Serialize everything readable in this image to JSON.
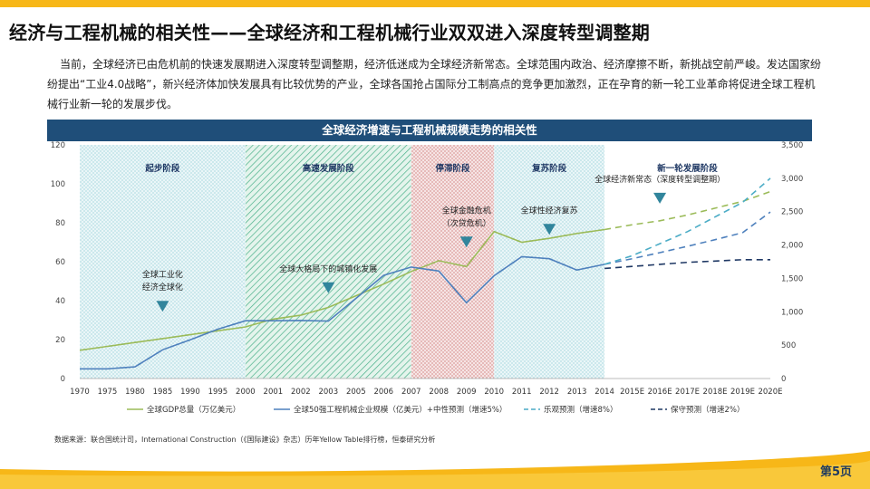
{
  "header": {
    "title": "经济与工程机械的相关性——全球经济和工程机械行业双双进入深度转型调整期"
  },
  "intro": {
    "text": "当前，全球经济已由危机前的快速发展期进入深度转型调整期，经济低迷成为全球经济新常态。全球范围内政治、经济摩擦不断，新挑战空前严峻。发达国家纷纷提出“工业4.0战略”，新兴经济体加快发展具有比较优势的产业，全球各国抢占国际分工制高点的竞争更加激烈，正在孕育的新一轮工业革命将促进全球工程机械行业新一轮的发展步伐。"
  },
  "footer": {
    "source": "数据来源：联合国统计司，International Construction（《国际建设》杂志）历年Yellow Table排行榜，恒泰研究分析",
    "page": "第5页"
  },
  "colors": {
    "accent_yellow": "#f7b718",
    "header_blue": "#1f4e79",
    "gdp_green": "#9bbb59",
    "machinery_blue": "#4f81bd",
    "optimistic_blue": "#4bacc6",
    "conservative_navy": "#1f3864",
    "marker_teal": "#31859c"
  },
  "chart_data": {
    "type": "line",
    "title": "全球经济增速与工程机械规模走势的相关性",
    "categories": [
      "1970",
      "1975",
      "1980",
      "1985",
      "1990",
      "1995",
      "2000",
      "2001",
      "2002",
      "2003",
      "2005",
      "2006",
      "2007",
      "2008",
      "2009",
      "2010",
      "2011",
      "2012",
      "2013",
      "2014",
      "2015E",
      "2016E",
      "2017E",
      "2018E",
      "2019E",
      "2020E"
    ],
    "y_left": {
      "ticks": [
        0,
        20,
        40,
        60,
        80,
        100,
        120
      ],
      "range": [
        0,
        120
      ]
    },
    "y_right": {
      "ticks": [
        "0",
        "500",
        "1,000",
        "1,500",
        "2,000",
        "2,500",
        "3,000",
        "3,500"
      ],
      "range": [
        0,
        3500
      ]
    },
    "phases": [
      {
        "label": "起步阶段",
        "from": "1970",
        "to": "2000",
        "pattern": "dots",
        "color": "#7fc4cf"
      },
      {
        "label": "高速发展阶段",
        "from": "2000",
        "to": "2007",
        "pattern": "hatch",
        "color": "#49b089"
      },
      {
        "label": "停滞阶段",
        "from": "2007",
        "to": "2010",
        "pattern": "dots",
        "color": "#c0504d"
      },
      {
        "label": "复苏阶段",
        "from": "2010",
        "to": "2014",
        "pattern": "dots",
        "color": "#7fc4cf"
      },
      {
        "label": "新一轮发展阶段",
        "from": "2014",
        "to": "2020E",
        "pattern": "none",
        "color": "#ffffff"
      }
    ],
    "annotations": [
      {
        "lines": [
          "全球工业化",
          "经济全球化"
        ],
        "at": "1985",
        "y": 52
      },
      {
        "lines": [
          "全球大格局下的城镇化发展"
        ],
        "at": "2003",
        "y": 55
      },
      {
        "lines": [
          "全球金融危机",
          "（次贷危机）"
        ],
        "at": "2009",
        "y": 85
      },
      {
        "lines": [
          "全球性经济复苏"
        ],
        "at": "2012",
        "y": 85
      },
      {
        "lines": [
          "全球经济新常态（深度转型调整期）"
        ],
        "at": "2016E",
        "y": 101
      }
    ],
    "series": [
      {
        "name": "全球GDP总量（万亿美元）",
        "axis": "left",
        "style": "solid",
        "color": "#9bbb59",
        "x": [
          "1970",
          "1975",
          "1980",
          "1985",
          "1990",
          "1995",
          "2000",
          "2001",
          "2002",
          "2003",
          "2005",
          "2006",
          "2007",
          "2008",
          "2009",
          "2010",
          "2011",
          "2012",
          "2013",
          "2014"
        ],
        "values": [
          14.5,
          16.5,
          18.5,
          20.5,
          22.5,
          24.5,
          26.5,
          30.5,
          32.5,
          36.5,
          42.5,
          48.5,
          55,
          60.5,
          57.5,
          75.5,
          70,
          72,
          74.5,
          76.5
        ]
      },
      {
        "name": "全球50强工程机械企业规模（亿美元）+中性预测（增速5%）",
        "axis": "right",
        "style": "solid",
        "color": "#4f81bd",
        "x": [
          "1970",
          "1975",
          "1980",
          "1985",
          "1990",
          "1995",
          "2000",
          "2001",
          "2002",
          "2003",
          "2005",
          "2006",
          "2007",
          "2008",
          "2009",
          "2010",
          "2011",
          "2012",
          "2013",
          "2014"
        ],
        "values": [
          145,
          145,
          175,
          430,
          580,
          740,
          865,
          865,
          870,
          860,
          1200,
          1545,
          1670,
          1610,
          1135,
          1540,
          1825,
          1795,
          1625,
          1710
        ]
      },
      {
        "name": "全球50强工程机械企业规模（亿美元）+中性预测（增速5%）",
        "axis": "right",
        "style": "dashed",
        "color": "#4f81bd",
        "x": [
          "2014",
          "2015E",
          "2016E",
          "2017E",
          "2018E",
          "2019E",
          "2020E"
        ],
        "values": [
          1710,
          1795,
          1885,
          1980,
          2080,
          2185,
          2495
        ]
      },
      {
        "name": "全球GDP总量（万亿美元）",
        "axis": "left",
        "style": "dashed",
        "color": "#9bbb59",
        "x": [
          "2014",
          "2015E",
          "2016E",
          "2017E",
          "2018E",
          "2019E",
          "2020E"
        ],
        "values": [
          76.5,
          79,
          81,
          84,
          87.5,
          91,
          96
        ]
      },
      {
        "name": "乐观预测（增速8%）",
        "axis": "right",
        "style": "dashed",
        "color": "#4bacc6",
        "x": [
          "2014",
          "2015E",
          "2016E",
          "2017E",
          "2018E",
          "2019E",
          "2020E"
        ],
        "values": [
          1710,
          1840,
          2020,
          2200,
          2420,
          2640,
          3000
        ]
      },
      {
        "name": "保守预测（增速2%）",
        "axis": "right",
        "style": "dashed",
        "color": "#1f3864",
        "x": [
          "2014",
          "2015E",
          "2016E",
          "2017E",
          "2018E",
          "2019E",
          "2020E"
        ],
        "values": [
          1650,
          1680,
          1710,
          1740,
          1760,
          1780,
          1780
        ]
      }
    ],
    "legend": [
      {
        "label": "全球GDP总量（万亿美元）",
        "style": "solid",
        "color": "#9bbb59"
      },
      {
        "label": "全球50强工程机械企业规模（亿美元）+中性预测（增速5%）",
        "style": "solid",
        "color": "#4f81bd"
      },
      {
        "label": "乐观预测（增速8%）",
        "style": "dashed",
        "color": "#4bacc6"
      },
      {
        "label": "保守预测（增速2%）",
        "style": "dashed",
        "color": "#1f3864"
      }
    ],
    "legend_position": "bottom"
  }
}
